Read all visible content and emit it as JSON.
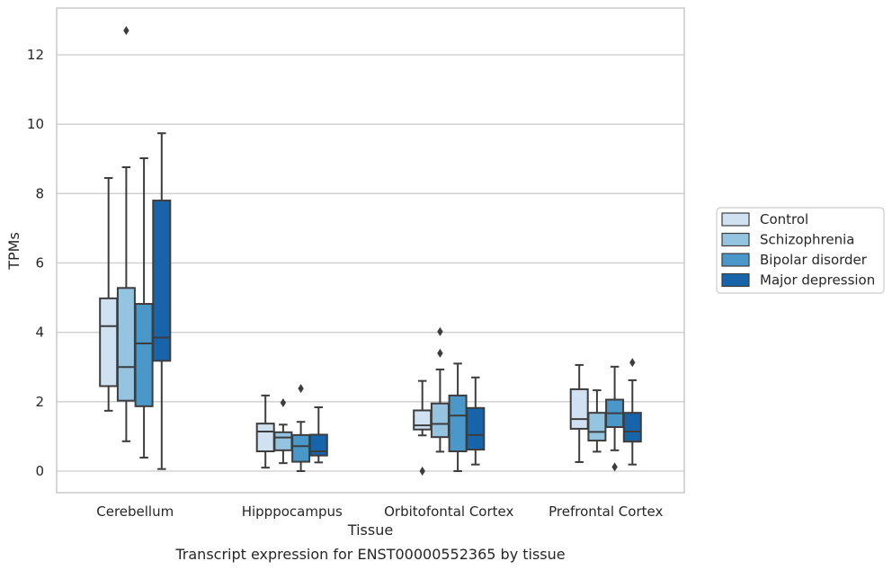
{
  "caption": "Transcript expression for ENST00000552365 by tissue",
  "chart_data": {
    "type": "box",
    "xlabel": "Tissue",
    "ylabel": "TPMs",
    "ylim": [
      -0.62,
      13.3
    ],
    "yticks": [
      0,
      2,
      4,
      6,
      8,
      10,
      12
    ],
    "grid": "horizontal",
    "legend_position": "right",
    "categories": [
      "Cerebellum",
      "Hipppocampus",
      "Orbitofontal Cortex",
      "Prefrontal Cortex"
    ],
    "series": [
      {
        "name": "Control",
        "color": "#d0e1f2",
        "boxes": [
          {
            "whislo": 1.74,
            "q1": 2.45,
            "med": 4.18,
            "q3": 4.98,
            "whishi": 8.45,
            "fliers": []
          },
          {
            "whislo": 0.1,
            "q1": 0.57,
            "med": 1.14,
            "q3": 1.37,
            "whishi": 2.18,
            "fliers": []
          },
          {
            "whislo": 1.03,
            "q1": 1.2,
            "med": 1.32,
            "q3": 1.75,
            "whishi": 2.6,
            "fliers": [
              0.0
            ]
          },
          {
            "whislo": 0.26,
            "q1": 1.22,
            "med": 1.5,
            "q3": 2.36,
            "whishi": 3.06,
            "fliers": []
          }
        ]
      },
      {
        "name": "Schizophrenia",
        "color": "#94c4df",
        "boxes": [
          {
            "whislo": 0.86,
            "q1": 2.03,
            "med": 3.0,
            "q3": 5.28,
            "whishi": 8.76,
            "fliers": [
              12.7
            ]
          },
          {
            "whislo": 0.23,
            "q1": 0.6,
            "med": 0.97,
            "q3": 1.12,
            "whishi": 1.34,
            "fliers": [
              1.97
            ]
          },
          {
            "whislo": 0.56,
            "q1": 0.98,
            "med": 1.36,
            "q3": 1.95,
            "whishi": 2.93,
            "fliers": [
              3.4,
              4.02
            ]
          },
          {
            "whislo": 0.56,
            "q1": 0.88,
            "med": 1.13,
            "q3": 1.68,
            "whishi": 2.33,
            "fliers": []
          }
        ]
      },
      {
        "name": "Bipolar disorder",
        "color": "#4a98c9",
        "boxes": [
          {
            "whislo": 0.39,
            "q1": 1.87,
            "med": 3.68,
            "q3": 4.82,
            "whishi": 9.02,
            "fliers": []
          },
          {
            "whislo": 0.0,
            "q1": 0.27,
            "med": 0.72,
            "q3": 1.04,
            "whishi": 1.42,
            "fliers": [
              2.38
            ]
          },
          {
            "whislo": 0.0,
            "q1": 0.57,
            "med": 1.6,
            "q3": 2.18,
            "whishi": 3.1,
            "fliers": []
          },
          {
            "whislo": 0.6,
            "q1": 1.27,
            "med": 1.67,
            "q3": 2.06,
            "whishi": 3.01,
            "fliers": [
              0.12
            ]
          }
        ]
      },
      {
        "name": "Major depression",
        "color": "#1764ab",
        "boxes": [
          {
            "whislo": 0.06,
            "q1": 3.18,
            "med": 3.85,
            "q3": 7.8,
            "whishi": 9.74,
            "fliers": []
          },
          {
            "whislo": 0.25,
            "q1": 0.45,
            "med": 0.57,
            "q3": 1.05,
            "whishi": 1.84,
            "fliers": []
          },
          {
            "whislo": 0.19,
            "q1": 0.62,
            "med": 1.04,
            "q3": 1.82,
            "whishi": 2.7,
            "fliers": []
          },
          {
            "whislo": 0.19,
            "q1": 0.85,
            "med": 1.14,
            "q3": 1.68,
            "whishi": 2.62,
            "fliers": [
              3.13
            ]
          }
        ]
      }
    ]
  }
}
